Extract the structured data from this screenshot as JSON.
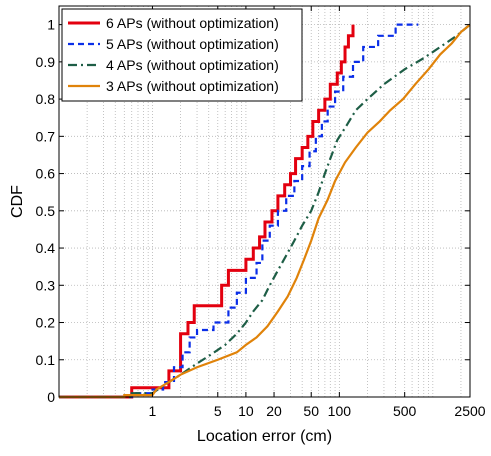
{
  "chart_data": {
    "type": "line",
    "subtype": "empirical CDF (step)",
    "xscale": "log",
    "xlabel": "Location error (cm)",
    "ylabel": "CDF",
    "xlim": [
      0.1,
      2500
    ],
    "ylim": [
      0,
      1.05
    ],
    "xticks": [
      1,
      5,
      10,
      20,
      50,
      100,
      500,
      2500
    ],
    "xtick_labels": [
      "1",
      "5",
      "10",
      "20",
      "50",
      "100",
      "500",
      "2500"
    ],
    "yticks": [
      0,
      0.1,
      0.2,
      0.3,
      0.4,
      0.5,
      0.6,
      0.7,
      0.8,
      0.9,
      1
    ],
    "ytick_labels": [
      "0",
      "0.1",
      "0.2",
      "0.3",
      "0.4",
      "0.5",
      "0.6",
      "0.7",
      "0.8",
      "0.9",
      "1"
    ],
    "grid": true,
    "legend_position": "top-left",
    "series": [
      {
        "name": "6 APs (without optimization)",
        "color": "#e3000f",
        "dash": "solid",
        "points": [
          [
            0.1,
            0
          ],
          [
            0.6,
            0
          ],
          [
            0.6,
            0.025
          ],
          [
            1.5,
            0.025
          ],
          [
            1.5,
            0.07
          ],
          [
            2.0,
            0.07
          ],
          [
            2.0,
            0.17
          ],
          [
            2.4,
            0.17
          ],
          [
            2.4,
            0.2
          ],
          [
            2.8,
            0.2
          ],
          [
            2.8,
            0.245
          ],
          [
            5.5,
            0.245
          ],
          [
            5.5,
            0.3
          ],
          [
            6.5,
            0.3
          ],
          [
            6.5,
            0.34
          ],
          [
            10,
            0.34
          ],
          [
            10,
            0.37
          ],
          [
            12,
            0.37
          ],
          [
            12,
            0.4
          ],
          [
            14,
            0.4
          ],
          [
            14,
            0.43
          ],
          [
            16,
            0.43
          ],
          [
            16,
            0.47
          ],
          [
            19,
            0.47
          ],
          [
            19,
            0.5
          ],
          [
            22,
            0.5
          ],
          [
            22,
            0.54
          ],
          [
            26,
            0.54
          ],
          [
            26,
            0.57
          ],
          [
            30,
            0.57
          ],
          [
            30,
            0.6
          ],
          [
            34,
            0.6
          ],
          [
            34,
            0.64
          ],
          [
            40,
            0.64
          ],
          [
            40,
            0.67
          ],
          [
            46,
            0.67
          ],
          [
            46,
            0.7
          ],
          [
            52,
            0.7
          ],
          [
            52,
            0.74
          ],
          [
            60,
            0.74
          ],
          [
            60,
            0.77
          ],
          [
            70,
            0.77
          ],
          [
            70,
            0.8
          ],
          [
            80,
            0.8
          ],
          [
            80,
            0.84
          ],
          [
            95,
            0.84
          ],
          [
            95,
            0.87
          ],
          [
            105,
            0.87
          ],
          [
            105,
            0.9
          ],
          [
            115,
            0.9
          ],
          [
            115,
            0.94
          ],
          [
            125,
            0.94
          ],
          [
            125,
            0.97
          ],
          [
            140,
            0.97
          ],
          [
            140,
            1.0
          ]
        ]
      },
      {
        "name": "5 APs (without optimization)",
        "color": "#0a2ee8",
        "dash": "dashed",
        "points": [
          [
            0.1,
            0
          ],
          [
            0.6,
            0
          ],
          [
            0.6,
            0.01
          ],
          [
            1.0,
            0.01
          ],
          [
            1.0,
            0.02
          ],
          [
            1.3,
            0.02
          ],
          [
            1.3,
            0.04
          ],
          [
            1.7,
            0.04
          ],
          [
            1.7,
            0.08
          ],
          [
            2.1,
            0.08
          ],
          [
            2.1,
            0.12
          ],
          [
            2.5,
            0.12
          ],
          [
            2.5,
            0.16
          ],
          [
            3,
            0.16
          ],
          [
            3,
            0.18
          ],
          [
            4.5,
            0.18
          ],
          [
            4.5,
            0.2
          ],
          [
            6.5,
            0.2
          ],
          [
            6.5,
            0.24
          ],
          [
            8,
            0.24
          ],
          [
            8,
            0.28
          ],
          [
            10,
            0.28
          ],
          [
            10,
            0.32
          ],
          [
            13,
            0.32
          ],
          [
            13,
            0.36
          ],
          [
            15,
            0.36
          ],
          [
            15,
            0.42
          ],
          [
            18,
            0.42
          ],
          [
            18,
            0.46
          ],
          [
            22,
            0.46
          ],
          [
            22,
            0.5
          ],
          [
            27,
            0.5
          ],
          [
            27,
            0.54
          ],
          [
            33,
            0.54
          ],
          [
            33,
            0.58
          ],
          [
            40,
            0.58
          ],
          [
            40,
            0.62
          ],
          [
            48,
            0.62
          ],
          [
            48,
            0.66
          ],
          [
            56,
            0.66
          ],
          [
            56,
            0.7
          ],
          [
            65,
            0.7
          ],
          [
            65,
            0.74
          ],
          [
            75,
            0.74
          ],
          [
            75,
            0.78
          ],
          [
            90,
            0.78
          ],
          [
            90,
            0.82
          ],
          [
            110,
            0.82
          ],
          [
            110,
            0.86
          ],
          [
            140,
            0.86
          ],
          [
            140,
            0.9
          ],
          [
            180,
            0.9
          ],
          [
            180,
            0.94
          ],
          [
            260,
            0.94
          ],
          [
            260,
            0.97
          ],
          [
            400,
            0.97
          ],
          [
            400,
            1.0
          ],
          [
            700,
            1.0
          ]
        ]
      },
      {
        "name": "4 APs (without optimization)",
        "color": "#1e5e46",
        "dash": "dashdot",
        "points": [
          [
            0.1,
            0
          ],
          [
            0.6,
            0
          ],
          [
            0.6,
            0.01
          ],
          [
            1.0,
            0.01
          ],
          [
            1.3,
            0.03
          ],
          [
            2,
            0.06
          ],
          [
            3,
            0.09
          ],
          [
            4,
            0.11
          ],
          [
            6,
            0.14
          ],
          [
            8,
            0.17
          ],
          [
            10,
            0.2
          ],
          [
            12,
            0.23
          ],
          [
            15,
            0.26
          ],
          [
            18,
            0.3
          ],
          [
            22,
            0.34
          ],
          [
            27,
            0.38
          ],
          [
            33,
            0.42
          ],
          [
            40,
            0.46
          ],
          [
            50,
            0.5
          ],
          [
            60,
            0.55
          ],
          [
            70,
            0.6
          ],
          [
            80,
            0.64
          ],
          [
            95,
            0.69
          ],
          [
            120,
            0.73
          ],
          [
            150,
            0.77
          ],
          [
            200,
            0.8
          ],
          [
            300,
            0.84
          ],
          [
            500,
            0.88
          ],
          [
            800,
            0.91
          ],
          [
            1200,
            0.94
          ],
          [
            1800,
            0.97
          ],
          [
            2500,
            1.0
          ]
        ]
      },
      {
        "name": "3 APs (without optimization)",
        "color": "#e0830a",
        "dash": "solid",
        "points": [
          [
            0.1,
            0
          ],
          [
            0.5,
            0
          ],
          [
            0.5,
            0.005
          ],
          [
            1.0,
            0.005
          ],
          [
            1.1,
            0.02
          ],
          [
            1.5,
            0.04
          ],
          [
            2,
            0.06
          ],
          [
            3,
            0.08
          ],
          [
            5,
            0.1
          ],
          [
            8,
            0.12
          ],
          [
            10,
            0.14
          ],
          [
            13,
            0.16
          ],
          [
            17,
            0.19
          ],
          [
            22,
            0.23
          ],
          [
            28,
            0.27
          ],
          [
            35,
            0.32
          ],
          [
            42,
            0.37
          ],
          [
            50,
            0.42
          ],
          [
            60,
            0.48
          ],
          [
            75,
            0.53
          ],
          [
            90,
            0.58
          ],
          [
            115,
            0.63
          ],
          [
            150,
            0.67
          ],
          [
            200,
            0.71
          ],
          [
            270,
            0.74
          ],
          [
            350,
            0.77
          ],
          [
            480,
            0.8
          ],
          [
            650,
            0.84
          ],
          [
            900,
            0.88
          ],
          [
            1200,
            0.92
          ],
          [
            1600,
            0.95
          ],
          [
            2000,
            0.98
          ],
          [
            2500,
            1.0
          ]
        ]
      }
    ]
  }
}
